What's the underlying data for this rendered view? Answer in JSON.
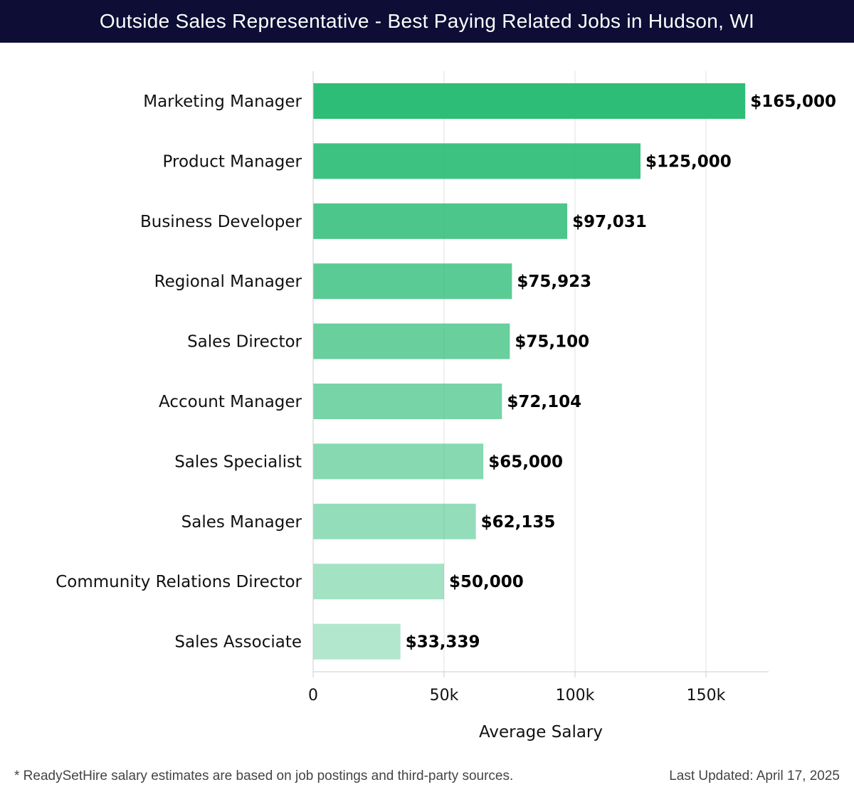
{
  "header": {
    "title": "Outside Sales Representative - Best Paying Related Jobs in Hudson, WI"
  },
  "chart_data": {
    "type": "bar",
    "orientation": "horizontal",
    "title": "Outside Sales Representative - Best Paying Related Jobs in Hudson, WI",
    "xlabel": "Average Salary",
    "ylabel": "",
    "xlim": [
      0,
      175000
    ],
    "x_ticks": [
      0,
      50000,
      100000,
      150000
    ],
    "x_tick_labels": [
      "0",
      "50k",
      "100k",
      "150k"
    ],
    "grid": true,
    "categories": [
      "Marketing Manager",
      "Product Manager",
      "Business Developer",
      "Regional Manager",
      "Sales Director",
      "Account Manager",
      "Sales Specialist",
      "Sales Manager",
      "Community Relations Director",
      "Sales Associate"
    ],
    "values": [
      165000,
      125000,
      97031,
      75923,
      75100,
      72104,
      65000,
      62135,
      50000,
      33339
    ],
    "value_labels": [
      "$165,000",
      "$125,000",
      "$97,031",
      "$75,923",
      "$75,100",
      "$72,104",
      "$65,000",
      "$62,135",
      "$50,000",
      "$33,339"
    ],
    "bar_color": "#2ebd77"
  },
  "footer": {
    "note": "* ReadySetHire salary estimates are based on job postings and third-party sources.",
    "updated": "Last Updated: April 17, 2025"
  }
}
